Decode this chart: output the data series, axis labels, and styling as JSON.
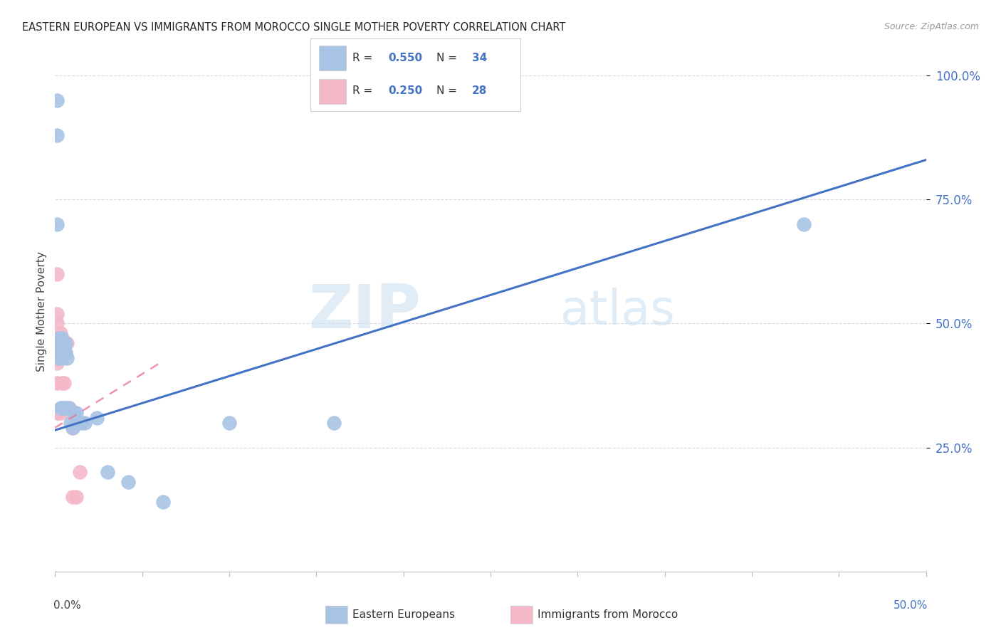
{
  "title": "EASTERN EUROPEAN VS IMMIGRANTS FROM MOROCCO SINGLE MOTHER POVERTY CORRELATION CHART",
  "source": "Source: ZipAtlas.com",
  "ylabel": "Single Mother Poverty",
  "xlim": [
    0.0,
    0.5
  ],
  "ylim": [
    0.0,
    1.05
  ],
  "ytick_positions": [
    0.25,
    0.5,
    0.75,
    1.0
  ],
  "ytick_labels": [
    "25.0%",
    "50.0%",
    "75.0%",
    "100.0%"
  ],
  "background_color": "#ffffff",
  "watermark_zip": "ZIP",
  "watermark_atlas": "atlas",
  "blue_color": "#a8c4e5",
  "blue_line_color": "#4472c4",
  "pink_color": "#f4b8c8",
  "pink_line_color": "#e87090",
  "grid_color": "#d8d8e8",
  "axis_label_color": "#4472c4",
  "blue_label": "Eastern Europeans",
  "pink_label": "Immigrants from Morocco",
  "blue_R": "0.550",
  "blue_N": "34",
  "pink_R": "0.250",
  "pink_N": "28",
  "blue_x": [
    0.001,
    0.001,
    0.001,
    0.002,
    0.002,
    0.002,
    0.003,
    0.003,
    0.003,
    0.004,
    0.004,
    0.004,
    0.004,
    0.005,
    0.005,
    0.006,
    0.006,
    0.006,
    0.007,
    0.008,
    0.009,
    0.01,
    0.011,
    0.012,
    0.013,
    0.015,
    0.017,
    0.024,
    0.03,
    0.042,
    0.062,
    0.1,
    0.16,
    0.43
  ],
  "blue_y": [
    0.95,
    0.88,
    0.7,
    0.47,
    0.46,
    0.43,
    0.46,
    0.44,
    0.33,
    0.47,
    0.45,
    0.43,
    0.33,
    0.45,
    0.33,
    0.46,
    0.44,
    0.33,
    0.43,
    0.33,
    0.3,
    0.29,
    0.32,
    0.32,
    0.3,
    0.3,
    0.3,
    0.31,
    0.2,
    0.18,
    0.14,
    0.3,
    0.3,
    0.7
  ],
  "pink_x": [
    0.001,
    0.001,
    0.001,
    0.001,
    0.001,
    0.001,
    0.001,
    0.001,
    0.002,
    0.002,
    0.002,
    0.002,
    0.003,
    0.003,
    0.003,
    0.003,
    0.004,
    0.004,
    0.004,
    0.005,
    0.005,
    0.006,
    0.007,
    0.008,
    0.01,
    0.01,
    0.012,
    0.014
  ],
  "pink_y": [
    0.6,
    0.52,
    0.5,
    0.46,
    0.44,
    0.42,
    0.38,
    0.32,
    0.47,
    0.45,
    0.43,
    0.32,
    0.48,
    0.46,
    0.44,
    0.32,
    0.46,
    0.44,
    0.38,
    0.44,
    0.38,
    0.44,
    0.46,
    0.33,
    0.29,
    0.15,
    0.15,
    0.2
  ],
  "blue_line_x0": 0.0,
  "blue_line_y0": 0.285,
  "blue_line_x1": 0.5,
  "blue_line_y1": 0.83,
  "pink_line_x0": 0.0,
  "pink_line_y0": 0.29,
  "pink_line_x1": 0.06,
  "pink_line_y1": 0.42
}
